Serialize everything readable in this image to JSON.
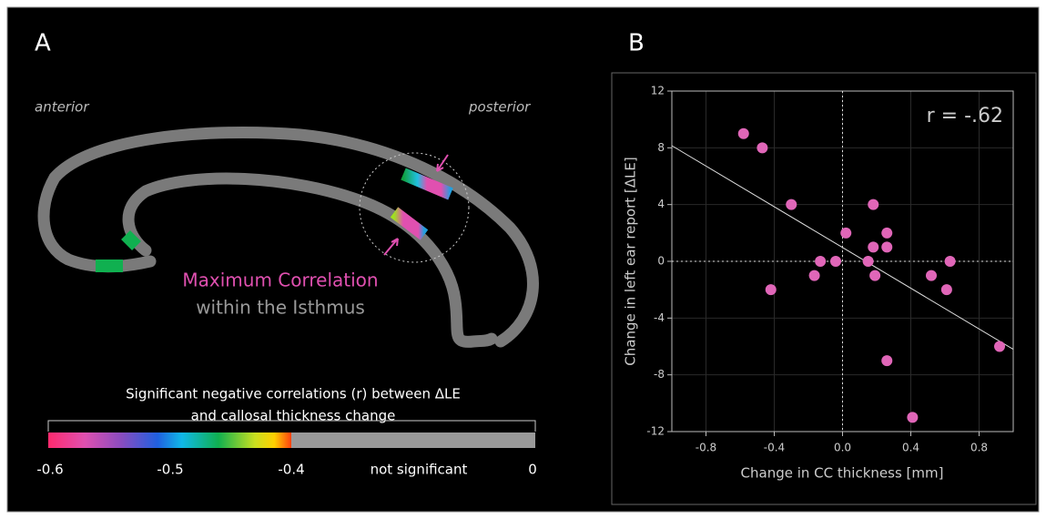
{
  "panel_a": {
    "label": "A",
    "anterior": "anterior",
    "posterior": "posterior",
    "highlight_title": "Maximum Correlation",
    "highlight_subtitle": "within the Isthmus",
    "colorbar": {
      "title": [
        "Significant negative correlations (r) between ΔLE",
        "and callosal thickness change"
      ],
      "labels": [
        "-0.6",
        "-0.5",
        "-0.4",
        "not significant",
        "0"
      ]
    }
  },
  "chart_data": {
    "type": "scatter",
    "panel_label": "B",
    "xlabel": "Change in CC thickness [mm]",
    "ylabel": "Change in left ear report [ΔLE]",
    "annotation": "r = -.62",
    "x": [
      -0.58,
      -0.47,
      -0.3,
      -0.42,
      -0.165,
      -0.13,
      -0.04,
      0.02,
      0.15,
      0.18,
      0.18,
      0.19,
      0.26,
      0.26,
      0.26,
      0.41,
      0.52,
      0.61,
      0.63,
      0.92
    ],
    "y": [
      9,
      8,
      4,
      -2,
      -1,
      0,
      0,
      2,
      0,
      4,
      1,
      -1,
      2,
      1,
      -7,
      -11,
      -1,
      -2,
      0,
      -6
    ],
    "color": "#e066b8",
    "trend_line": {
      "x": [
        -1,
        1
      ],
      "y": [
        8.15,
        -6.2
      ]
    },
    "xlim": [
      -1,
      1
    ],
    "ylim": [
      -12,
      12
    ],
    "xticks": [
      -0.8,
      -0.4,
      {
        "value": 0,
        "label": "0.0"
      },
      0.4,
      0.8
    ],
    "yticks": [
      -12,
      -8,
      -4,
      0,
      4,
      8,
      12
    ],
    "grid": true
  }
}
